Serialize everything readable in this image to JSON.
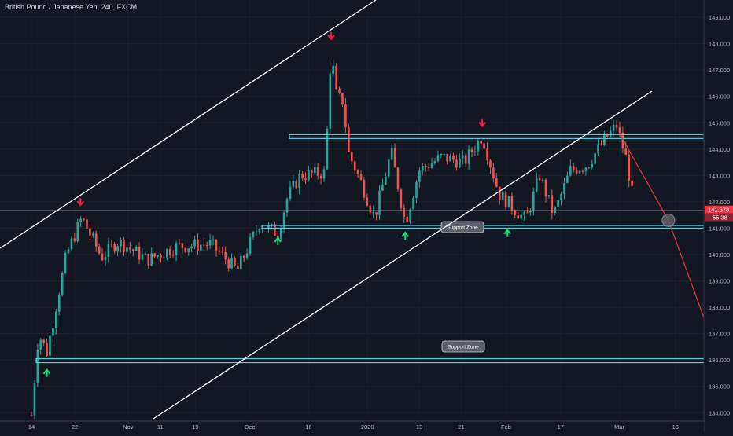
{
  "header": {
    "symbol_title": "British Pound / Japanese Yen, 240, FXCM"
  },
  "colors": {
    "background": "#131722",
    "bull": "#26a69a",
    "bear": "#ef5350",
    "zone": "#4dd0e1",
    "trendline": "#ffffff",
    "projection": "#e53935",
    "arrow_down": "#ff1744",
    "arrow_up": "#00e676",
    "current_price": "#f23645"
  },
  "current_price": {
    "value": "141.678",
    "countdown": "55:38"
  },
  "annotations": {
    "support_zone_upper": "Support Zone",
    "support_zone_lower": "Support Zone"
  },
  "chart_data": {
    "type": "candlestick",
    "title": "British Pound / Japanese Yen, 240, FXCM",
    "y_axis": {
      "ticks": [
        "134.000",
        "135.000",
        "136.000",
        "137.000",
        "138.000",
        "139.000",
        "140.000",
        "141.000",
        "142.000",
        "143.000",
        "144.000",
        "145.000",
        "146.000",
        "147.000",
        "148.000",
        "149.000"
      ],
      "range": [
        133.8,
        149.3
      ]
    },
    "x_axis": {
      "ticks": [
        "14",
        "22",
        "Nov",
        "11",
        "19",
        "Dec",
        "16",
        "2020",
        "13",
        "21",
        "Feb",
        "17",
        "Mar",
        "16"
      ]
    },
    "price_path": [
      {
        "t": 0,
        "p": 133.9
      },
      {
        "t": 0.5,
        "p": 137.0
      },
      {
        "t": 1.1,
        "p": 136.3
      },
      {
        "t": 2.5,
        "p": 140.0
      },
      {
        "t": 3.6,
        "p": 141.4
      },
      {
        "t": 5.0,
        "p": 139.9
      },
      {
        "t": 6.2,
        "p": 140.5
      },
      {
        "t": 8.3,
        "p": 139.8
      },
      {
        "t": 10.3,
        "p": 140.3
      },
      {
        "t": 12.8,
        "p": 140.4
      },
      {
        "t": 14.7,
        "p": 139.4
      },
      {
        "t": 16.3,
        "p": 141.2
      },
      {
        "t": 17.6,
        "p": 140.8
      },
      {
        "t": 18.3,
        "p": 142.2
      },
      {
        "t": 19.2,
        "p": 143.0
      },
      {
        "t": 20.9,
        "p": 143.1
      },
      {
        "t": 21.1,
        "p": 144.5
      },
      {
        "t": 21.4,
        "p": 147.7
      },
      {
        "t": 21.8,
        "p": 146.0
      },
      {
        "t": 22.3,
        "p": 145.8
      },
      {
        "t": 22.6,
        "p": 143.9
      },
      {
        "t": 23.5,
        "p": 142.8
      },
      {
        "t": 24.5,
        "p": 141.4
      },
      {
        "t": 25.7,
        "p": 143.9
      },
      {
        "t": 26.7,
        "p": 141.2
      },
      {
        "t": 27.7,
        "p": 143.2
      },
      {
        "t": 29.3,
        "p": 143.7
      },
      {
        "t": 30.9,
        "p": 143.5
      },
      {
        "t": 32.2,
        "p": 144.5
      },
      {
        "t": 33.4,
        "p": 142.3
      },
      {
        "t": 35.3,
        "p": 141.3
      },
      {
        "t": 36.3,
        "p": 143.0
      },
      {
        "t": 37.3,
        "p": 141.5
      },
      {
        "t": 38.5,
        "p": 143.2
      },
      {
        "t": 39.7,
        "p": 143.4
      },
      {
        "t": 41.0,
        "p": 144.4
      },
      {
        "t": 41.8,
        "p": 144.9
      },
      {
        "t": 42.5,
        "p": 143.6
      },
      {
        "t": 43.1,
        "p": 141.7
      }
    ],
    "support_zones": [
      {
        "label": "Support Zone",
        "top": 141.1,
        "bottom": 141.0
      },
      {
        "label": "Support Zone",
        "top": 136.05,
        "bottom": 135.9
      }
    ],
    "resistance_zone": {
      "top": 144.55,
      "bottom": 144.4
    },
    "current_price_line": 141.678,
    "markers": {
      "down_arrows": [
        {
          "t": 3.5,
          "p": 141.9
        },
        {
          "t": 21.4,
          "p": 148.2
        },
        {
          "t": 32.2,
          "p": 144.9
        }
      ],
      "up_arrows": [
        {
          "t": 1.1,
          "p": 135.6
        },
        {
          "t": 17.6,
          "p": 140.6
        },
        {
          "t": 26.7,
          "p": 140.8
        },
        {
          "t": 34.0,
          "p": 140.9
        }
      ]
    },
    "projection": [
      {
        "t": 42.0,
        "p": 144.6
      },
      {
        "t": 45.5,
        "p": 141.3
      },
      {
        "t": 49.2,
        "p": 135.9
      }
    ]
  }
}
